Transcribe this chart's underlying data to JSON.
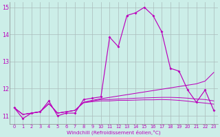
{
  "background_color": "#cceee8",
  "grid_color": "#aabbbb",
  "line_color": "#bb00bb",
  "xlim_min": 0,
  "xlim_max": 23,
  "ylim_min": 10.7,
  "ylim_max": 15.2,
  "yticks": [
    11,
    12,
    13,
    14,
    15
  ],
  "xticks": [
    0,
    1,
    2,
    3,
    4,
    5,
    6,
    7,
    8,
    9,
    10,
    11,
    12,
    13,
    14,
    15,
    16,
    17,
    18,
    19,
    20,
    21,
    22,
    23
  ],
  "xlabel": "Windchill (Refroidissement éolien,°C)",
  "series_main": [
    11.3,
    10.9,
    11.1,
    11.15,
    11.55,
    11.0,
    11.1,
    11.1,
    11.6,
    11.65,
    11.7,
    13.9,
    13.55,
    14.7,
    14.8,
    15.0,
    14.7,
    14.1,
    12.75,
    12.65,
    11.95,
    11.5,
    11.95,
    11.2
  ],
  "series_rising": [
    11.3,
    11.05,
    11.1,
    11.15,
    11.45,
    11.1,
    11.15,
    11.2,
    11.5,
    11.57,
    11.63,
    11.68,
    11.73,
    11.78,
    11.83,
    11.88,
    11.93,
    11.98,
    12.03,
    12.08,
    12.13,
    12.18,
    12.28,
    12.6
  ],
  "series_flat1": [
    11.3,
    11.05,
    11.1,
    11.15,
    11.45,
    11.1,
    11.15,
    11.2,
    11.5,
    11.55,
    11.6,
    11.6,
    11.62,
    11.63,
    11.65,
    11.66,
    11.67,
    11.68,
    11.68,
    11.67,
    11.65,
    11.62,
    11.6,
    11.55
  ],
  "series_flat2": [
    11.3,
    11.05,
    11.1,
    11.15,
    11.45,
    11.1,
    11.15,
    11.2,
    11.48,
    11.52,
    11.55,
    11.55,
    11.57,
    11.57,
    11.58,
    11.59,
    11.59,
    11.6,
    11.59,
    11.57,
    11.54,
    11.5,
    11.47,
    11.43
  ]
}
